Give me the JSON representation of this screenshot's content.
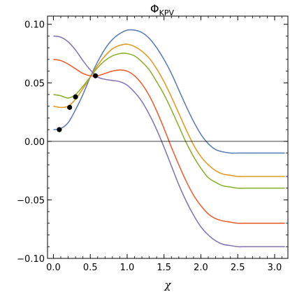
{
  "chart_data": {
    "type": "line",
    "title": "Φ",
    "title_subscript": "KPV",
    "xlabel": "χ",
    "ylabel": "",
    "xlim": [
      -0.08,
      3.18
    ],
    "ylim": [
      -0.1,
      0.107
    ],
    "x_ticks": [
      {
        "value": 0.0,
        "label": "0.0"
      },
      {
        "value": 0.5,
        "label": "0.5"
      },
      {
        "value": 1.0,
        "label": "1.0"
      },
      {
        "value": 1.5,
        "label": "1.5"
      },
      {
        "value": 2.0,
        "label": "2.0"
      },
      {
        "value": 2.5,
        "label": "2.5"
      },
      {
        "value": 3.0,
        "label": "3.0"
      }
    ],
    "y_ticks": [
      {
        "value": 0.1,
        "label": "0.10"
      },
      {
        "value": 0.05,
        "label": "0.05"
      },
      {
        "value": 0.0,
        "label": "0.00"
      },
      {
        "value": -0.05,
        "label": "−0.05"
      },
      {
        "value": -0.1,
        "label": "−0.10"
      }
    ],
    "zero_line": true,
    "grid": false,
    "legend": "none",
    "series": [
      {
        "color": "#5e81b5",
        "x": [
          0.0,
          0.1,
          0.2,
          0.3,
          0.4,
          0.5,
          0.6,
          0.7,
          0.8,
          0.9,
          1.0,
          1.1,
          1.2,
          1.3,
          1.4,
          1.5,
          1.6,
          1.7,
          1.8,
          1.9,
          2.0,
          2.1,
          2.2,
          2.3,
          2.4,
          2.5,
          2.6,
          2.7,
          2.8,
          2.9,
          3.0,
          3.14
        ],
        "y": [
          0.01,
          0.011,
          0.016,
          0.027,
          0.04,
          0.055,
          0.068,
          0.079,
          0.087,
          0.092,
          0.095,
          0.095,
          0.093,
          0.088,
          0.08,
          0.07,
          0.058,
          0.044,
          0.03,
          0.017,
          0.006,
          -0.002,
          -0.007,
          -0.009,
          -0.01,
          -0.01,
          -0.01,
          -0.01,
          -0.01,
          -0.01,
          -0.01,
          -0.01
        ]
      },
      {
        "color": "#e19c24",
        "x": [
          0.0,
          0.1,
          0.2,
          0.3,
          0.4,
          0.5,
          0.6,
          0.7,
          0.8,
          0.9,
          1.0,
          1.1,
          1.2,
          1.3,
          1.4,
          1.5,
          1.6,
          1.7,
          1.8,
          1.9,
          2.0,
          2.1,
          2.2,
          2.3,
          2.4,
          2.5,
          2.6,
          2.7,
          2.8,
          2.9,
          3.0,
          3.14
        ],
        "y": [
          0.03,
          0.029,
          0.03,
          0.036,
          0.045,
          0.055,
          0.065,
          0.073,
          0.079,
          0.082,
          0.083,
          0.081,
          0.077,
          0.071,
          0.062,
          0.051,
          0.038,
          0.024,
          0.01,
          -0.003,
          -0.013,
          -0.02,
          -0.025,
          -0.028,
          -0.029,
          -0.03,
          -0.03,
          -0.03,
          -0.03,
          -0.03,
          -0.03,
          -0.03
        ]
      },
      {
        "color": "#8fb032",
        "x": [
          0.0,
          0.1,
          0.2,
          0.3,
          0.4,
          0.5,
          0.6,
          0.7,
          0.8,
          0.9,
          1.0,
          1.1,
          1.2,
          1.3,
          1.4,
          1.5,
          1.6,
          1.7,
          1.8,
          1.9,
          2.0,
          2.1,
          2.2,
          2.3,
          2.4,
          2.5,
          2.6,
          2.7,
          2.8,
          2.9,
          3.0,
          3.14
        ],
        "y": [
          0.04,
          0.039,
          0.037,
          0.04,
          0.047,
          0.055,
          0.063,
          0.069,
          0.073,
          0.075,
          0.075,
          0.073,
          0.068,
          0.061,
          0.051,
          0.04,
          0.027,
          0.013,
          -0.001,
          -0.013,
          -0.023,
          -0.031,
          -0.035,
          -0.038,
          -0.039,
          -0.04,
          -0.04,
          -0.04,
          -0.04,
          -0.04,
          -0.04,
          -0.04
        ]
      },
      {
        "color": "#eb6235",
        "x": [
          0.0,
          0.1,
          0.2,
          0.3,
          0.4,
          0.5,
          0.6,
          0.7,
          0.8,
          0.9,
          1.0,
          1.1,
          1.2,
          1.3,
          1.4,
          1.5,
          1.6,
          1.7,
          1.8,
          1.9,
          2.0,
          2.1,
          2.2,
          2.3,
          2.4,
          2.5,
          2.6,
          2.7,
          2.8,
          2.9,
          3.0,
          3.14
        ],
        "y": [
          0.07,
          0.069,
          0.066,
          0.062,
          0.058,
          0.056,
          0.056,
          0.058,
          0.06,
          0.061,
          0.06,
          0.056,
          0.049,
          0.039,
          0.026,
          0.011,
          -0.005,
          -0.02,
          -0.034,
          -0.046,
          -0.055,
          -0.062,
          -0.066,
          -0.068,
          -0.069,
          -0.07,
          -0.07,
          -0.07,
          -0.07,
          -0.07,
          -0.07,
          -0.07
        ]
      },
      {
        "color": "#8778b3",
        "x": [
          0.0,
          0.1,
          0.2,
          0.3,
          0.4,
          0.5,
          0.6,
          0.7,
          0.8,
          0.9,
          1.0,
          1.1,
          1.2,
          1.3,
          1.4,
          1.5,
          1.6,
          1.7,
          1.8,
          1.9,
          2.0,
          2.1,
          2.2,
          2.3,
          2.4,
          2.5,
          2.6,
          2.7,
          2.8,
          2.9,
          3.0,
          3.14
        ],
        "y": [
          0.09,
          0.089,
          0.085,
          0.078,
          0.069,
          0.061,
          0.055,
          0.053,
          0.052,
          0.051,
          0.048,
          0.042,
          0.034,
          0.023,
          0.01,
          -0.005,
          -0.021,
          -0.037,
          -0.051,
          -0.063,
          -0.073,
          -0.08,
          -0.085,
          -0.088,
          -0.089,
          -0.09,
          -0.09,
          -0.09,
          -0.09,
          -0.09,
          -0.09,
          -0.09
        ]
      }
    ],
    "points": [
      {
        "x": 0.08,
        "y": 0.01
      },
      {
        "x": 0.22,
        "y": 0.029
      },
      {
        "x": 0.3,
        "y": 0.038
      },
      {
        "x": 0.57,
        "y": 0.056
      }
    ]
  }
}
